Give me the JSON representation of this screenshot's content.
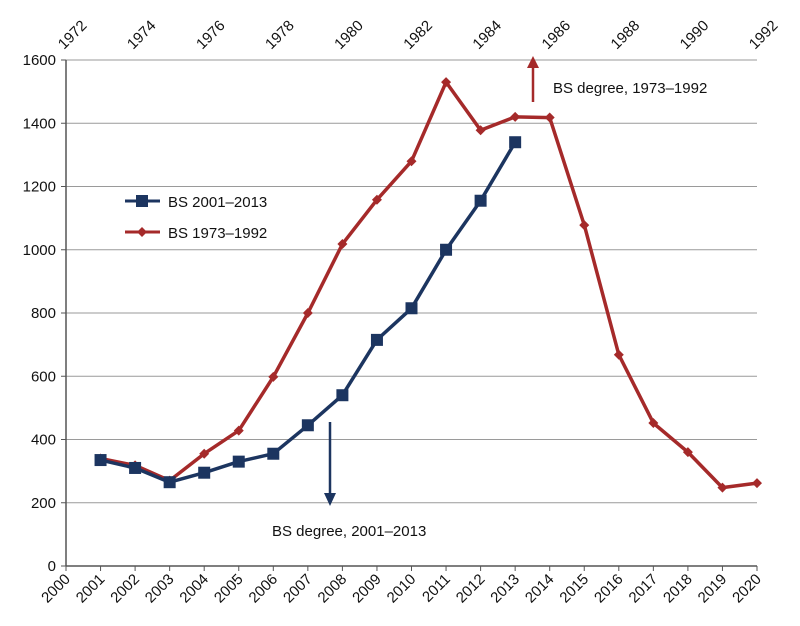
{
  "chart_data": {
    "type": "line",
    "bottom_axis_ticks": [
      "2000",
      "2001",
      "2002",
      "2003",
      "2004",
      "2005",
      "2006",
      "2007",
      "2008",
      "2009",
      "2010",
      "2011",
      "2012",
      "2013",
      "2014",
      "2015",
      "2016",
      "2017",
      "2018",
      "2019",
      "2020"
    ],
    "top_axis_ticks": [
      "1972",
      "1974",
      "1976",
      "1978",
      "1980",
      "1982",
      "1984",
      "1986",
      "1988",
      "1990",
      "1992"
    ],
    "y_ticks": [
      "0",
      "200",
      "400",
      "600",
      "800",
      "1000",
      "1200",
      "1400",
      "1600"
    ],
    "ylim": [
      0,
      1600
    ],
    "grid": true,
    "series": [
      {
        "name": "BS 2001–2013",
        "color": "#1c3560",
        "marker": "square",
        "x": [
          2001,
          2002,
          2003,
          2004,
          2005,
          2006,
          2007,
          2008,
          2009,
          2010,
          2011,
          2012,
          2013
        ],
        "values": [
          335,
          310,
          265,
          295,
          330,
          355,
          445,
          540,
          715,
          815,
          1000,
          1155,
          1340
        ]
      },
      {
        "name": "BS 1973–1992",
        "color": "#a52a2a",
        "marker": "diamond",
        "x": [
          2001,
          2002,
          2003,
          2004,
          2005,
          2006,
          2007,
          2008,
          2009,
          2010,
          2011,
          2012,
          2013,
          2014,
          2015,
          2016,
          2017,
          2018,
          2019,
          2020
        ],
        "values": [
          340,
          318,
          270,
          355,
          428,
          598,
          800,
          1018,
          1158,
          1280,
          1530,
          1378,
          1420,
          1418,
          1078,
          668,
          452,
          360,
          248,
          262
        ]
      }
    ],
    "annotations": [
      {
        "text": "BS degree, 1973–1992",
        "color": "#a52a2a"
      },
      {
        "text": "BS degree, 2001–2013",
        "color": "#1c3560"
      }
    ]
  }
}
